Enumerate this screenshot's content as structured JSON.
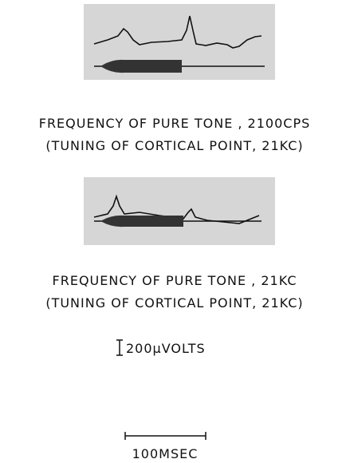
{
  "panels": [
    {
      "caption": [
        "FREQUENCY OF PURE TONE , 2100CPS",
        "(TUNING OF CORTICAL POINT, 21KC)"
      ]
    },
    {
      "caption": [
        "FREQUENCY OF PURE TONE , 21KC",
        "(TUNING OF CORTICAL POINT, 21KC)"
      ]
    }
  ],
  "scale": {
    "voltage": "200μVOLTS",
    "time": "100MSEC"
  }
}
